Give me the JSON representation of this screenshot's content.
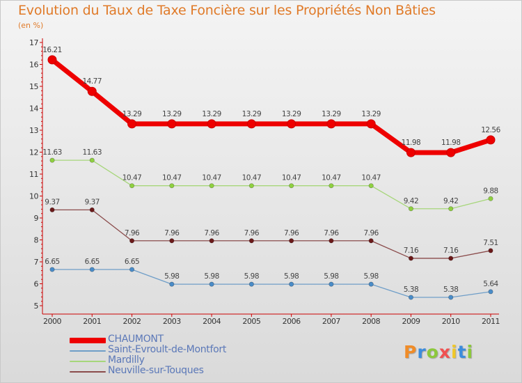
{
  "chart_data": {
    "type": "line",
    "title": "Evolution du Taux de Taxe Foncière sur les Propriétés Non Bâties",
    "subtitle": "(en %)",
    "xlabel": "",
    "ylabel": "(en %)",
    "categories": [
      "2000",
      "2001",
      "2002",
      "2003",
      "2004",
      "2005",
      "2006",
      "2007",
      "2008",
      "2009",
      "2010",
      "2011"
    ],
    "ylim": [
      5,
      17
    ],
    "yticks": [
      "5",
      "6",
      "7",
      "8",
      "9",
      "10",
      "11",
      "12",
      "13",
      "14",
      "15",
      "16",
      "17"
    ],
    "grid": false,
    "legend_position": "bottom-left",
    "series": [
      {
        "name": "CHAUMONT",
        "color": "#ee0000",
        "marker_color": "#ee0000",
        "style": "thick",
        "values": [
          16.21,
          14.77,
          13.29,
          13.29,
          13.29,
          13.29,
          13.29,
          13.29,
          13.29,
          11.98,
          11.98,
          12.56
        ],
        "labels": [
          "16.21",
          "14.77",
          "13.29",
          "13.29",
          "13.29",
          "13.29",
          "13.29",
          "13.29",
          "13.29",
          "11.98",
          "11.98",
          "12.56"
        ]
      },
      {
        "name": "Saint-Evroult-de-Montfort",
        "color": "#6f9ec8",
        "marker_color": "#4a8cc8",
        "style": "thin",
        "values": [
          6.65,
          6.65,
          6.65,
          5.98,
          5.98,
          5.98,
          5.98,
          5.98,
          5.98,
          5.38,
          5.38,
          5.64
        ],
        "labels": [
          "6.65",
          "6.65",
          "6.65",
          "5.98",
          "5.98",
          "5.98",
          "5.98",
          "5.98",
          "5.98",
          "5.38",
          "5.38",
          "5.64"
        ]
      },
      {
        "name": "Mardilly",
        "color": "#a6d67a",
        "marker_color": "#8fd040",
        "style": "thin",
        "values": [
          11.63,
          11.63,
          10.47,
          10.47,
          10.47,
          10.47,
          10.47,
          10.47,
          10.47,
          9.42,
          9.42,
          9.88
        ],
        "labels": [
          "11.63",
          "11.63",
          "10.47",
          "10.47",
          "10.47",
          "10.47",
          "10.47",
          "10.47",
          "10.47",
          "9.42",
          "9.42",
          "9.88"
        ]
      },
      {
        "name": "Neuville-sur-Touques",
        "color": "#8a4b4b",
        "marker_color": "#6b1a1a",
        "style": "thin",
        "values": [
          9.37,
          9.37,
          7.96,
          7.96,
          7.96,
          7.96,
          7.96,
          7.96,
          7.96,
          7.16,
          7.16,
          7.51
        ],
        "labels": [
          "9.37",
          "9.37",
          "7.96",
          "7.96",
          "7.96",
          "7.96",
          "7.96",
          "7.96",
          "7.96",
          "7.16",
          "7.16",
          "7.51"
        ]
      }
    ]
  },
  "brand": {
    "letters": [
      "P",
      "r",
      "o",
      "x",
      "i",
      "t",
      "i"
    ],
    "colors": [
      "#f08c28",
      "#3c8cdc",
      "#8cc83c",
      "#f05050",
      "#f0c828",
      "#3c8cdc",
      "#8cc83c"
    ]
  },
  "colors": {
    "title": "#e07a28",
    "axis": "#cc0000",
    "legend_text": "#5b78b8"
  }
}
